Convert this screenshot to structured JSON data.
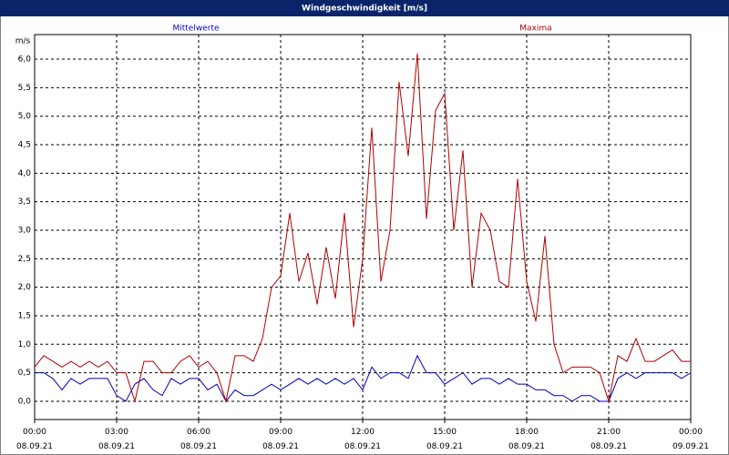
{
  "chart_data": {
    "type": "line",
    "title": "Windgeschwindigkeit [m/s]",
    "y_label": "m/s",
    "x": [
      0,
      20,
      40,
      60,
      80,
      100,
      120,
      140,
      160,
      180,
      200,
      220,
      240,
      260,
      280,
      300,
      320,
      340,
      360,
      380,
      400,
      420,
      440,
      460,
      480,
      500,
      520,
      540,
      560,
      580,
      600,
      620,
      640,
      660,
      680,
      700,
      720,
      740,
      760,
      780,
      800,
      820,
      840,
      860,
      880,
      900,
      920,
      940,
      960,
      980,
      1000,
      1020,
      1040,
      1060,
      1080,
      1100,
      1120,
      1140,
      1160,
      1180,
      1200,
      1220,
      1240,
      1260,
      1280,
      1300,
      1320,
      1340,
      1360,
      1380,
      1400,
      1420,
      1440
    ],
    "series": [
      {
        "name": "Mittelwerte",
        "color": "#0000c0",
        "values": [
          0.5,
          0.5,
          0.4,
          0.2,
          0.4,
          0.3,
          0.4,
          0.4,
          0.4,
          0.1,
          0.0,
          0.3,
          0.4,
          0.2,
          0.1,
          0.4,
          0.3,
          0.4,
          0.4,
          0.2,
          0.3,
          0.0,
          0.2,
          0.1,
          0.1,
          0.2,
          0.3,
          0.2,
          0.3,
          0.4,
          0.3,
          0.4,
          0.3,
          0.4,
          0.3,
          0.4,
          0.2,
          0.6,
          0.4,
          0.5,
          0.5,
          0.4,
          0.8,
          0.5,
          0.5,
          0.3,
          0.4,
          0.5,
          0.3,
          0.4,
          0.4,
          0.3,
          0.4,
          0.3,
          0.3,
          0.2,
          0.2,
          0.1,
          0.1,
          0.0,
          0.1,
          0.1,
          0.0,
          0.0,
          0.4,
          0.5,
          0.4,
          0.5,
          0.5,
          0.5,
          0.5,
          0.4,
          0.5
        ]
      },
      {
        "name": "Maxima",
        "color": "#b00000",
        "values": [
          0.6,
          0.8,
          0.7,
          0.6,
          0.7,
          0.6,
          0.7,
          0.6,
          0.7,
          0.5,
          0.5,
          0.0,
          0.7,
          0.7,
          0.5,
          0.5,
          0.7,
          0.8,
          0.6,
          0.7,
          0.5,
          0.0,
          0.8,
          0.8,
          0.7,
          1.1,
          2.0,
          2.2,
          3.3,
          2.1,
          2.6,
          1.7,
          2.7,
          1.8,
          3.3,
          1.3,
          2.5,
          4.8,
          2.1,
          3.0,
          5.6,
          4.3,
          6.1,
          3.2,
          5.1,
          5.4,
          3.0,
          4.4,
          2.0,
          3.3,
          3.0,
          2.1,
          2.0,
          3.9,
          2.1,
          1.4,
          2.9,
          1.0,
          0.5,
          0.6,
          0.6,
          0.6,
          0.5,
          0.0,
          0.8,
          0.7,
          1.1,
          0.7,
          0.7,
          0.8,
          0.9,
          0.7,
          0.7
        ]
      }
    ],
    "xlim": [
      0,
      1440
    ],
    "xticks": [
      {
        "value": 0,
        "label": "00:00 08.09.21"
      },
      {
        "value": 180,
        "label": "03:00 08.09.21"
      },
      {
        "value": 360,
        "label": "06:00 08.09.21"
      },
      {
        "value": 540,
        "label": "09:00 08.09.21"
      },
      {
        "value": 720,
        "label": "12:00 08.09.21"
      },
      {
        "value": 900,
        "label": "15:00 08.09.21"
      },
      {
        "value": 1080,
        "label": "18:00 08.09.21"
      },
      {
        "value": 1260,
        "label": "21:00 08.09.21"
      },
      {
        "value": 1440,
        "label": "00:00 09.09.21"
      }
    ],
    "ylim": [
      -0.32,
      6.4
    ],
    "yticks": [
      {
        "value": 0,
        "label": "0,0"
      },
      {
        "value": 0.5,
        "label": "0,5"
      },
      {
        "value": 1,
        "label": "1,0"
      },
      {
        "value": 1.5,
        "label": "1,5"
      },
      {
        "value": 2,
        "label": "2,0"
      },
      {
        "value": 2.5,
        "label": "2,5"
      },
      {
        "value": 3,
        "label": "3,0"
      },
      {
        "value": 3.5,
        "label": "3,5"
      },
      {
        "value": 4,
        "label": "4,0"
      },
      {
        "value": 4.5,
        "label": "4,5"
      },
      {
        "value": 5,
        "label": "5,0"
      },
      {
        "value": 5.5,
        "label": "5,5"
      },
      {
        "value": 6,
        "label": "6,0"
      }
    ],
    "grid": true
  }
}
